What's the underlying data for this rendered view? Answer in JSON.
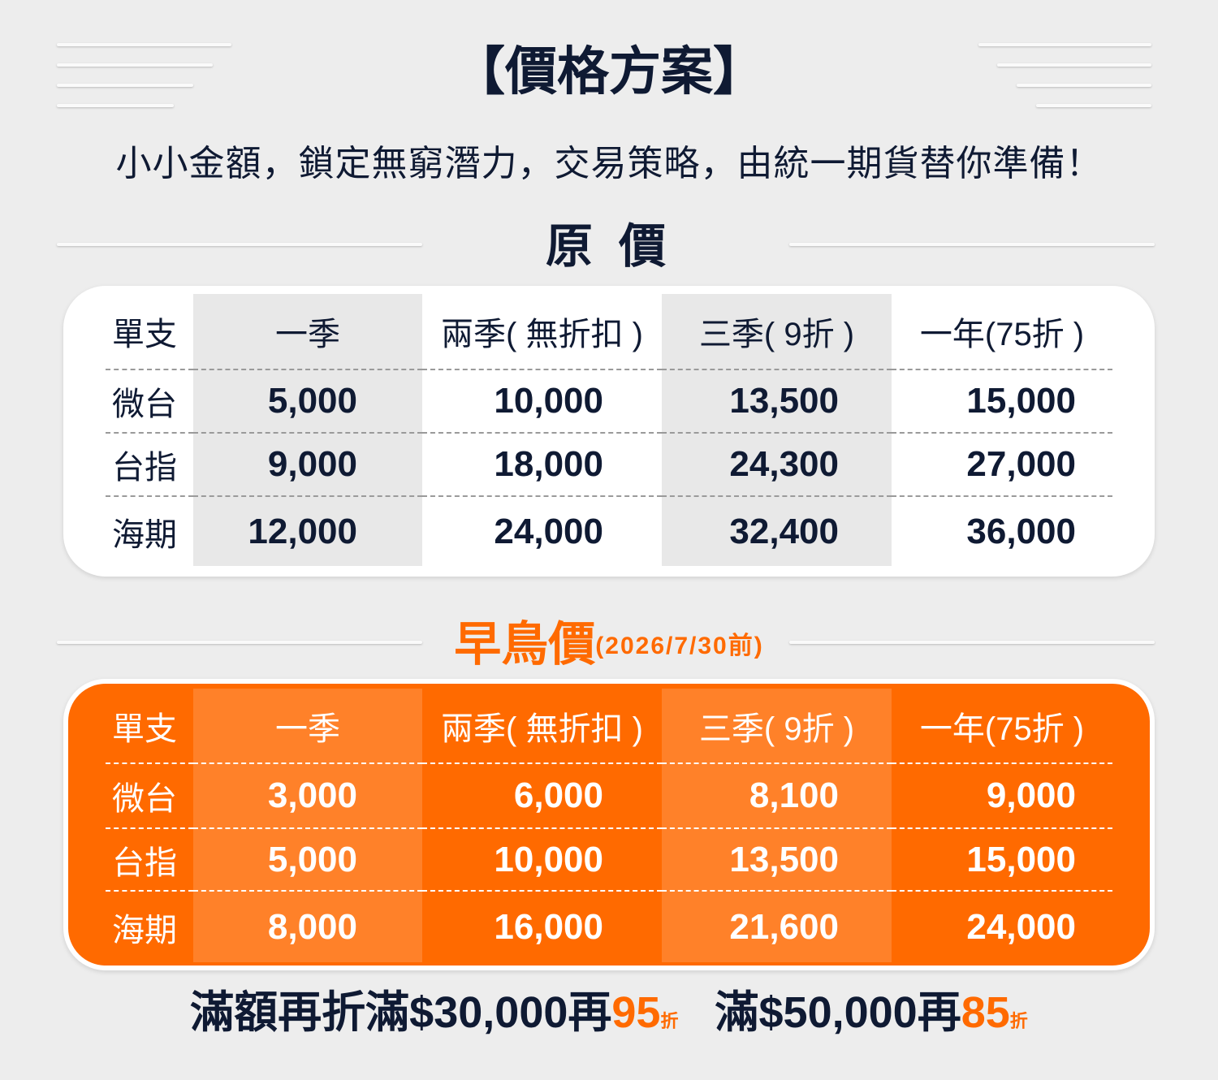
{
  "title": "【價格方案】",
  "subtitle": "小小金額，鎖定無窮潛力，交易策略，由統一期貨替你準備！",
  "original": {
    "heading": "原 價",
    "headers": [
      "單支",
      "一季",
      "兩季( 無折扣 )",
      "三季( 9折 )",
      "一年(75折 )"
    ],
    "rows": [
      [
        "微台",
        "5,000",
        "10,000",
        "13,500",
        "15,000"
      ],
      [
        "台指",
        "9,000",
        "18,000",
        "24,300",
        "27,000"
      ],
      [
        "海期",
        "12,000",
        "24,000",
        "32,400",
        "36,000"
      ]
    ]
  },
  "early_bird": {
    "heading": "早鳥價",
    "note": "(2026/7/30前)",
    "headers": [
      "單支",
      "一季",
      "兩季( 無折扣 )",
      "三季( 9折 )",
      "一年(75折 )"
    ],
    "rows": [
      [
        "微台",
        "3,000",
        "6,000",
        "8,100",
        "9,000"
      ],
      [
        "台指",
        "5,000",
        "10,000",
        "13,500",
        "15,000"
      ],
      [
        "海期",
        "8,000",
        "16,000",
        "21,600",
        "24,000"
      ]
    ]
  },
  "promo": {
    "part1": "滿額再折滿$30,000再",
    "discount1": "95",
    "unit1": "折",
    "part2": "滿$50,000再",
    "discount2": "85",
    "unit2": "折"
  },
  "colors": {
    "navy": "#0f1a33",
    "orange": "#ff6a00",
    "background": "#ededed"
  }
}
